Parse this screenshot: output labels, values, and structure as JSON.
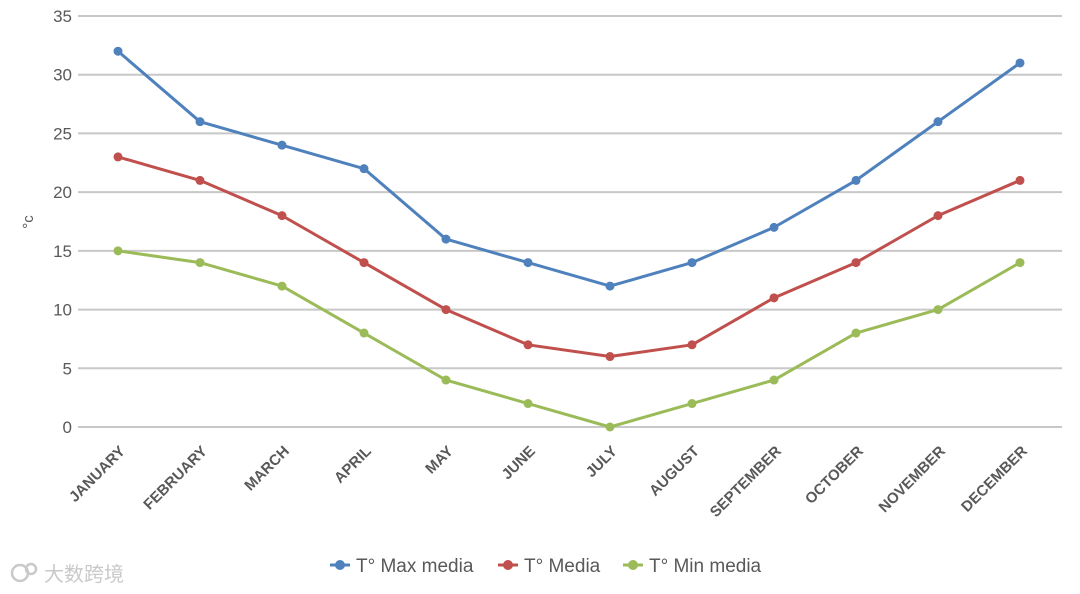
{
  "chart_data": {
    "type": "line",
    "categories": [
      "JANUARY",
      "FEBRUARY",
      "MARCH",
      "APRIL",
      "MAY",
      "JUNE",
      "JULY",
      "AUGUST",
      "SEPTEMBER",
      "OCTOBER",
      "NOVEMBER",
      "DECEMBER"
    ],
    "series": [
      {
        "name": "T° Max media",
        "color": "#4f81bd",
        "values": [
          32,
          26,
          24,
          22,
          16,
          14,
          12,
          14,
          17,
          21,
          26,
          31
        ]
      },
      {
        "name": "T° Media",
        "color": "#c0504d",
        "values": [
          23,
          21,
          18,
          14,
          10,
          7,
          6,
          7,
          11,
          14,
          18,
          21
        ]
      },
      {
        "name": "T° Min media",
        "color": "#9bbb59",
        "values": [
          15,
          14,
          12,
          8,
          4,
          2,
          0,
          2,
          4,
          8,
          10,
          14
        ]
      }
    ],
    "ylabel": "°c",
    "ylim": [
      0,
      35
    ],
    "yticks": [
      0,
      5,
      10,
      15,
      20,
      25,
      30,
      35
    ],
    "grid": true,
    "legend": "bottom"
  },
  "watermark": {
    "text": "大数跨境"
  }
}
